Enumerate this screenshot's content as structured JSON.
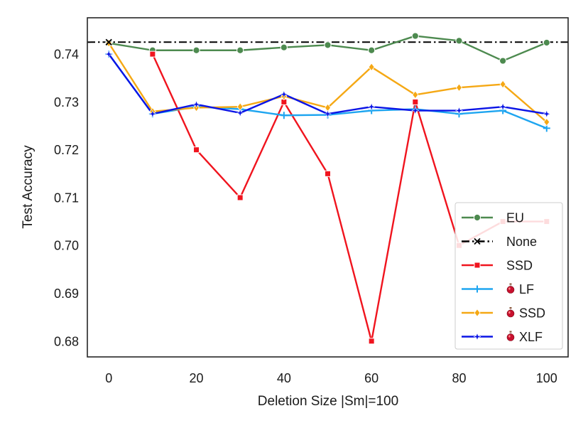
{
  "chart_data": {
    "type": "line",
    "title": "",
    "xlabel": "Deletion Size |Sm|=100",
    "ylabel": "Test Accuracy",
    "xlim": [
      -4.9,
      104.9
    ],
    "ylim": [
      0.6767,
      0.7476
    ],
    "xticks": [
      0,
      20,
      40,
      60,
      80,
      100
    ],
    "xtick_labels": [
      "0",
      "20",
      "40",
      "60",
      "80",
      "100"
    ],
    "yticks": [
      0.68,
      0.69,
      0.7,
      0.71,
      0.72,
      0.73,
      0.74
    ],
    "ytick_labels": [
      "0.68",
      "0.69",
      "0.70",
      "0.71",
      "0.72",
      "0.73",
      "0.74"
    ],
    "grid": false,
    "legend_position": "lower-right",
    "hline": {
      "name": "None",
      "y": 0.7425,
      "color": "#000000",
      "style": "dash-dot"
    },
    "series": [
      {
        "name": "EU",
        "potion": false,
        "color": "#4d8a4f",
        "marker": "circle",
        "x": [
          0,
          10,
          20,
          30,
          40,
          50,
          60,
          70,
          80,
          90,
          100
        ],
        "values": [
          0.7423,
          0.7408,
          0.7408,
          0.7408,
          0.7414,
          0.7419,
          0.7408,
          0.7438,
          0.7428,
          0.7386,
          0.7424
        ]
      },
      {
        "name": "None",
        "potion": false,
        "color": "#000000",
        "marker": "x",
        "x": [
          0
        ],
        "values": [
          0.7425
        ]
      },
      {
        "name": "SSD",
        "potion": false,
        "color": "#f0141e",
        "marker": "square",
        "x": [
          10,
          20,
          30,
          40,
          50,
          60,
          70,
          80,
          90,
          100
        ],
        "values": [
          0.74,
          0.72,
          0.71,
          0.73,
          0.715,
          0.68,
          0.73,
          0.7,
          0.705,
          0.705
        ]
      },
      {
        "name": "LF",
        "potion": true,
        "color": "#1ea5f0",
        "marker": "plus",
        "x": [
          0,
          10,
          20,
          30,
          40,
          50,
          60,
          70,
          80,
          90,
          100
        ],
        "values": [
          0.74,
          0.7275,
          0.729,
          0.7285,
          0.7272,
          0.7273,
          0.7282,
          0.7285,
          0.7275,
          0.7282,
          0.7245
        ]
      },
      {
        "name": "SSD",
        "potion": true,
        "color": "#f5a814",
        "marker": "diamond",
        "x": [
          0,
          10,
          20,
          30,
          40,
          50,
          60,
          70,
          80,
          90,
          100
        ],
        "values": [
          0.7423,
          0.728,
          0.7288,
          0.729,
          0.7312,
          0.7288,
          0.7373,
          0.7315,
          0.733,
          0.7337,
          0.7258
        ]
      },
      {
        "name": "XLF",
        "potion": true,
        "color": "#0a14e6",
        "marker": "star",
        "x": [
          0,
          10,
          20,
          30,
          40,
          50,
          60,
          70,
          80,
          90,
          100
        ],
        "values": [
          0.74,
          0.7275,
          0.7295,
          0.7277,
          0.7316,
          0.7275,
          0.729,
          0.7282,
          0.7282,
          0.729,
          0.7275
        ]
      }
    ]
  }
}
